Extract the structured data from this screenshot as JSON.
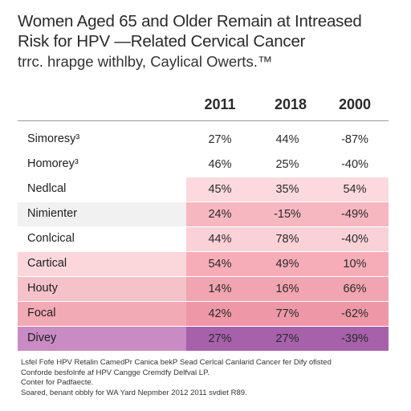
{
  "header": {
    "title_line1": "Women Aged 65 and Older Remain at Intreased",
    "title_line2": "Risk for  HPV —Related Cervical Cancer",
    "subtitle": "trrc. hrapge withlby, Caylical Owerts.™"
  },
  "table": {
    "columns": [
      "2011",
      "2018",
      "2000"
    ],
    "rows": [
      {
        "label": "Simoresy³",
        "values": [
          "27%",
          "44%",
          "-87%"
        ],
        "label_bg": "#ffffff",
        "cell_bg": "#ffffff"
      },
      {
        "label": "Homorey³",
        "values": [
          "46%",
          "25%",
          "-40%"
        ],
        "label_bg": "#ffffff",
        "cell_bg": "#ffffff"
      },
      {
        "label": "Nedlcal",
        "values": [
          "45%",
          "35%",
          "54%"
        ],
        "label_bg": "#ffffff",
        "cell_bg": "#fbd9de"
      },
      {
        "label": "Nimienter",
        "values": [
          "24%",
          "-15%",
          "-49%"
        ],
        "label_bg": "#f1f1f1",
        "cell_bg": "#f7b7c1"
      },
      {
        "label": "Conlcical",
        "values": [
          "44%",
          "78%",
          "-40%"
        ],
        "label_bg": "#ffffff",
        "cell_bg": "#fbd1d8"
      },
      {
        "label": "Cartical",
        "values": [
          "54%",
          "49%",
          "10%"
        ],
        "label_bg": "#fbd7dc",
        "cell_bg": "#f6adb8"
      },
      {
        "label": "Houty",
        "values": [
          "14%",
          "16%",
          "66%"
        ],
        "label_bg": "#f6c2c9",
        "cell_bg": "#f1a4b1"
      },
      {
        "label": "Focal",
        "values": [
          "42%",
          "77%",
          "-62%"
        ],
        "label_bg": "#f2aab5",
        "cell_bg": "#ee98a7"
      },
      {
        "label": "Divey",
        "values": [
          "27%",
          "27%",
          "-39%"
        ],
        "label_bg": "#c88bc3",
        "cell_bg": "#a761ab"
      }
    ]
  },
  "footer": {
    "lines": [
      "Lsfel Fofe HPV Retalin CamedPr Canica bekP Sead Cerlcal Canlarid Cancer fer Dify ofisted",
      "Conforde besfolnfe af HPV Cangge Cremdfy Delfval LP.",
      "Conter for Padfaecte.",
      "Soared, benant obbly for WA Yard Nepmber 2012 2011 svdiet R89."
    ]
  },
  "colors": {
    "rule": "#9a9a9a",
    "text": "#2a2a2a"
  }
}
